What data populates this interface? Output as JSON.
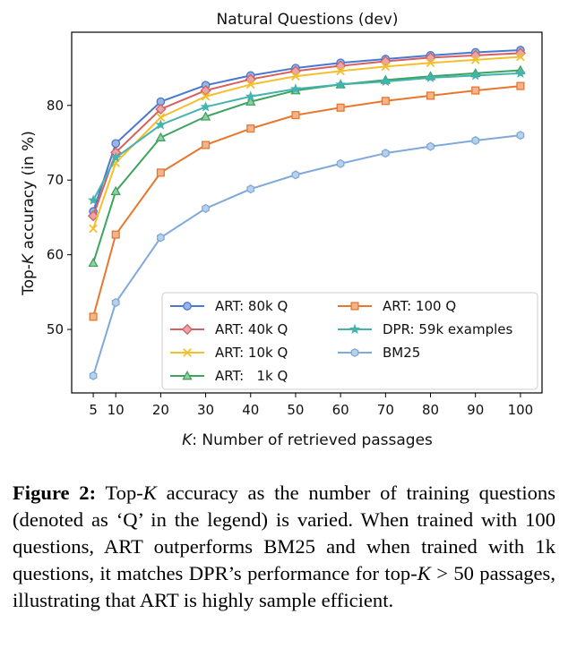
{
  "chart_data": {
    "type": "line",
    "title": "Natural Questions (dev)",
    "xlabel_var": "K",
    "xlabel_rest": ": Number of retrieved passages",
    "ylabel_pre": "Top-",
    "ylabel_var": "K",
    "ylabel_post": " accuracy (in %)",
    "x": [
      5,
      10,
      20,
      30,
      40,
      50,
      60,
      70,
      80,
      90,
      100
    ],
    "xticks": [
      "5",
      "10",
      "20",
      "30",
      "40",
      "50",
      "60",
      "70",
      "80",
      "90",
      "100"
    ],
    "yticks": [
      "50",
      "60",
      "70",
      "80"
    ],
    "ylim": [
      41.5,
      89.8
    ],
    "xlim": [
      0.2,
      104.8
    ],
    "grid": false,
    "legend_position": "lower-right",
    "series": [
      {
        "name": "ART: 80k Q",
        "color": "#4878cf",
        "marker": "circle",
        "values": [
          65.8,
          74.9,
          80.5,
          82.7,
          84.0,
          85.0,
          85.7,
          86.2,
          86.7,
          87.1,
          87.4
        ]
      },
      {
        "name": "ART: 40k Q",
        "color": "#d65f5f",
        "marker": "diamond",
        "values": [
          65.2,
          73.7,
          79.5,
          82.0,
          83.5,
          84.6,
          85.3,
          85.9,
          86.4,
          86.7,
          87.0
        ]
      },
      {
        "name": "ART: 10k Q",
        "color": "#f2c02e",
        "marker": "x",
        "values": [
          63.5,
          72.3,
          78.4,
          81.2,
          82.8,
          83.9,
          84.6,
          85.2,
          85.7,
          86.1,
          86.5
        ]
      },
      {
        "name": "ART:   1k Q",
        "color": "#3da35d",
        "marker": "triangle",
        "values": [
          58.9,
          68.5,
          75.7,
          78.5,
          80.5,
          82.0,
          82.8,
          83.4,
          83.9,
          84.3,
          84.7
        ]
      },
      {
        "name": "ART: 100 Q",
        "color": "#e8772e",
        "marker": "square",
        "values": [
          51.7,
          62.7,
          71.0,
          74.7,
          76.9,
          78.7,
          79.7,
          80.6,
          81.3,
          82.0,
          82.6
        ]
      },
      {
        "name": "DPR: 59k examples",
        "color": "#44b3b0",
        "marker": "star",
        "values": [
          67.3,
          73.0,
          77.4,
          79.8,
          81.2,
          82.2,
          82.8,
          83.2,
          83.7,
          84.0,
          84.3
        ]
      },
      {
        "name": "BM25",
        "color": "#7fa9d9",
        "marker": "hexagon",
        "values": [
          43.8,
          53.6,
          62.3,
          66.2,
          68.8,
          70.7,
          72.2,
          73.6,
          74.5,
          75.3,
          76.0
        ]
      }
    ]
  },
  "caption": {
    "label": "Figure 2:",
    "p1": "Top-",
    "var1": "K",
    "p2": " accuracy as the number of training questions (denoted as ‘Q’ in the legend) is varied. When trained with 100 questions, ART outperforms BM25 and when trained with 1k questions, it matches DPR’s performance for top-",
    "var2": "K",
    "p3": " > 50 passages, illustrating that ART is highly sample efficient."
  }
}
